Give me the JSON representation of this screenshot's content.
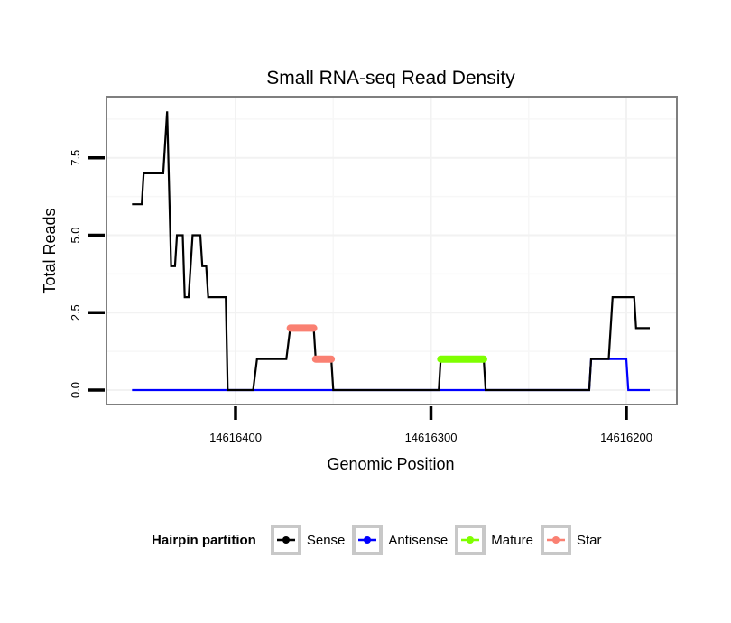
{
  "chart_data": {
    "type": "line",
    "title": "Small RNA-seq Read Density",
    "xlabel": "Genomic Position",
    "ylabel": "Total Reads",
    "x_reversed": true,
    "xlim": [
      14616453,
      14616188
    ],
    "ylim": [
      -0.4,
      9.2
    ],
    "x_ticks": [
      14616400,
      14616300,
      14616200
    ],
    "x_tick_labels": [
      "14616400",
      "14616300",
      "14616200"
    ],
    "y_ticks": [
      0,
      2.5,
      5,
      7.5
    ],
    "y_tick_labels": [
      "0.0",
      "2.5",
      "5.0",
      "7.5"
    ],
    "grid": true,
    "legend": {
      "title": "Hairpin partition",
      "placement": "bottom",
      "entries": [
        {
          "label": "Sense",
          "color": "#000000"
        },
        {
          "label": "Antisense",
          "color": "#0000ff"
        },
        {
          "label": "Mature",
          "color": "#7fff00"
        },
        {
          "label": "Star",
          "color": "#fa8072"
        }
      ]
    },
    "series": [
      {
        "name": "Sense",
        "color": "#000000",
        "kind": "line",
        "points": [
          [
            14616453,
            6
          ],
          [
            14616448,
            6
          ],
          [
            14616447,
            7
          ],
          [
            14616437,
            7
          ],
          [
            14616435,
            9
          ],
          [
            14616433,
            4
          ],
          [
            14616431,
            4
          ],
          [
            14616430,
            5
          ],
          [
            14616427,
            5
          ],
          [
            14616426,
            3
          ],
          [
            14616424,
            3
          ],
          [
            14616422,
            5
          ],
          [
            14616418,
            5
          ],
          [
            14616417,
            4
          ],
          [
            14616415,
            4
          ],
          [
            14616414,
            3
          ],
          [
            14616405,
            3
          ],
          [
            14616404,
            0
          ],
          [
            14616391,
            0
          ],
          [
            14616389,
            1
          ],
          [
            14616374,
            1
          ],
          [
            14616372,
            2
          ],
          [
            14616360,
            2
          ],
          [
            14616359,
            1
          ],
          [
            14616351,
            1
          ],
          [
            14616350,
            0
          ],
          [
            14616296,
            0
          ],
          [
            14616295,
            1
          ],
          [
            14616273,
            1
          ],
          [
            14616272,
            0
          ],
          [
            14616219,
            0
          ],
          [
            14616218,
            1
          ],
          [
            14616209,
            1
          ],
          [
            14616207,
            3
          ],
          [
            14616196,
            3
          ],
          [
            14616195,
            2
          ],
          [
            14616188,
            2
          ]
        ]
      },
      {
        "name": "Antisense",
        "color": "#0000ff",
        "kind": "line",
        "points": [
          [
            14616453,
            0
          ],
          [
            14616219,
            0
          ],
          [
            14616218,
            1
          ],
          [
            14616200,
            1
          ],
          [
            14616199,
            0
          ],
          [
            14616188,
            0
          ]
        ]
      },
      {
        "name": "Mature",
        "color": "#7fff00",
        "kind": "points",
        "points": [
          [
            14616295,
            1
          ],
          [
            14616273,
            1
          ]
        ]
      },
      {
        "name": "Star",
        "color": "#fa8072",
        "kind": "points",
        "segments": [
          [
            [
              14616372,
              2
            ],
            [
              14616360,
              2
            ]
          ],
          [
            [
              14616359,
              1
            ],
            [
              14616351,
              1
            ]
          ]
        ]
      }
    ]
  }
}
